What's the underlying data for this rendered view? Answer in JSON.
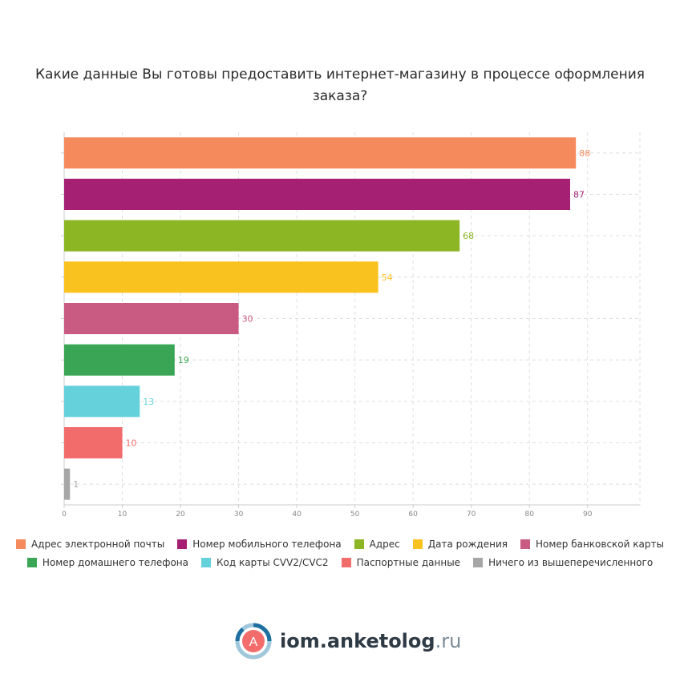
{
  "chart_data": {
    "type": "bar",
    "orientation": "horizontal",
    "title": "Какие данные Вы готовы предоставить интернет-магазину в процессе оформления заказа?",
    "categories": [
      "Адрес электронной почты",
      "Номер мобильного телефона",
      "Адрес",
      "Дата рождения",
      "Номер банковской карты",
      "Номер домашнего телефона",
      "Код карты CVV2/CVC2",
      "Паспортные данные",
      "Ничего из вышеперечисленного"
    ],
    "values": [
      88,
      87,
      68,
      54,
      30,
      19,
      13,
      10,
      1
    ],
    "colors": [
      "#f58b5d",
      "#a51f73",
      "#8cb624",
      "#fac21f",
      "#c95a82",
      "#3aa655",
      "#65d1db",
      "#f26c6c",
      "#a6a6a6"
    ],
    "xlim": [
      0,
      99
    ],
    "xticks": [
      0,
      10,
      20,
      30,
      40,
      50,
      60,
      70,
      80,
      90
    ],
    "grid": true,
    "legend_position": "bottom"
  },
  "footer": {
    "logo_letter": "A",
    "site_name": "iom.anketolog",
    "site_tld": ".ru"
  }
}
